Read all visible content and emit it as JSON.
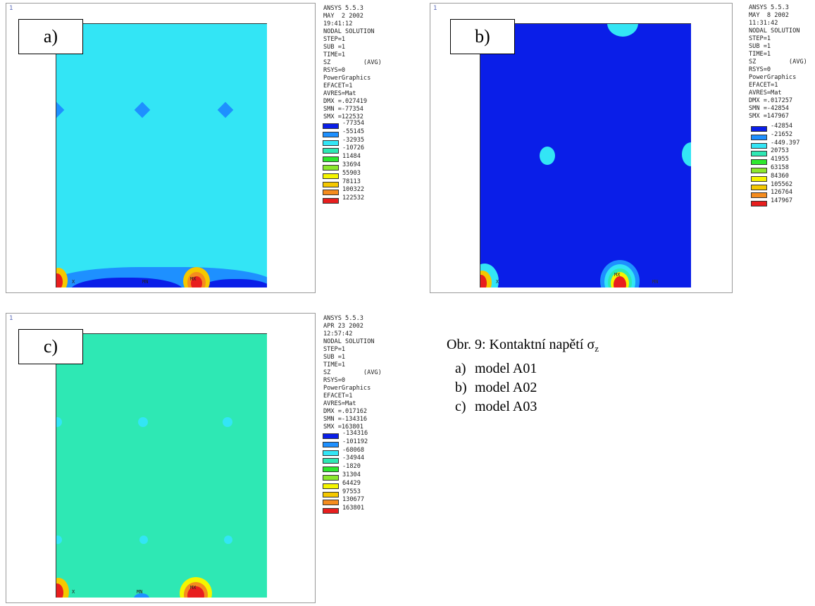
{
  "caption": {
    "prefix": "Obr. 9: Kontaktní napětí σ",
    "subscript": "z",
    "items": [
      {
        "letter": "a)",
        "text": "model A01"
      },
      {
        "letter": "b)",
        "text": "model A02"
      },
      {
        "letter": "c)",
        "text": "model A03"
      }
    ]
  },
  "panels": [
    {
      "id": "a",
      "corner": "1",
      "label": "a)",
      "info": [
        "ANSYS 5.5.3",
        "MAY  2 2002",
        "19:41:12",
        "NODAL SOLUTION",
        "STEP=1",
        "SUB =1",
        "TIME=1",
        "SZ         (AVG)",
        "RSYS=0",
        "PowerGraphics",
        "EFACET=1",
        "AVRES=Mat",
        "DMX =.027419",
        "SMN =-77354",
        "SMX =122532"
      ],
      "legend": [
        "-77354",
        "-55145",
        "-32935",
        "-10726",
        "11484",
        "33694",
        "55903",
        "78113",
        "100322",
        "122532"
      ],
      "marks": [
        "X",
        "MN",
        "MX"
      ],
      "bg_color": "#33e5f5"
    },
    {
      "id": "b",
      "corner": "1",
      "label": "b)",
      "info": [
        "ANSYS 5.5.3",
        "MAY  8 2002",
        "11:31:42",
        "NODAL SOLUTION",
        "STEP=1",
        "SUB =1",
        "TIME=1",
        "SZ         (AVG)",
        "RSYS=0",
        "PowerGraphics",
        "EFACET=1",
        "AVRES=Mat",
        "DMX =.017257",
        "SMN =-42854",
        "SMX =147967"
      ],
      "legend": [
        "-42854",
        "-21652",
        "-449.397",
        "20753",
        "41955",
        "63158",
        "84360",
        "105562",
        "126764",
        "147967"
      ],
      "marks": [
        "X",
        "MX",
        "MN"
      ],
      "bg_color": "#0a1ee8"
    },
    {
      "id": "c",
      "corner": "1",
      "label": "c)",
      "info": [
        "ANSYS 5.5.3",
        "APR 23 2002",
        "12:57:42",
        "NODAL SOLUTION",
        "STEP=1",
        "SUB =1",
        "TIME=1",
        "SZ         (AVG)",
        "RSYS=0",
        "PowerGraphics",
        "EFACET=1",
        "AVRES=Mat",
        "DMX =.017162",
        "SMN =-134316",
        "SMX =163801"
      ],
      "legend": [
        "-134316",
        "-101192",
        "-68068",
        "-34944",
        "-1820",
        "31304",
        "64429",
        "97553",
        "130677",
        "163801"
      ],
      "marks": [
        "X",
        "MN",
        "MX"
      ],
      "bg_color": "#2ee8b4"
    }
  ],
  "legend_colors": [
    "#0a1ee8",
    "#1e90ff",
    "#33e5f5",
    "#2ee8b4",
    "#2ee82e",
    "#8ce82e",
    "#f5f500",
    "#f5c800",
    "#f58c1e",
    "#e81e1e"
  ]
}
